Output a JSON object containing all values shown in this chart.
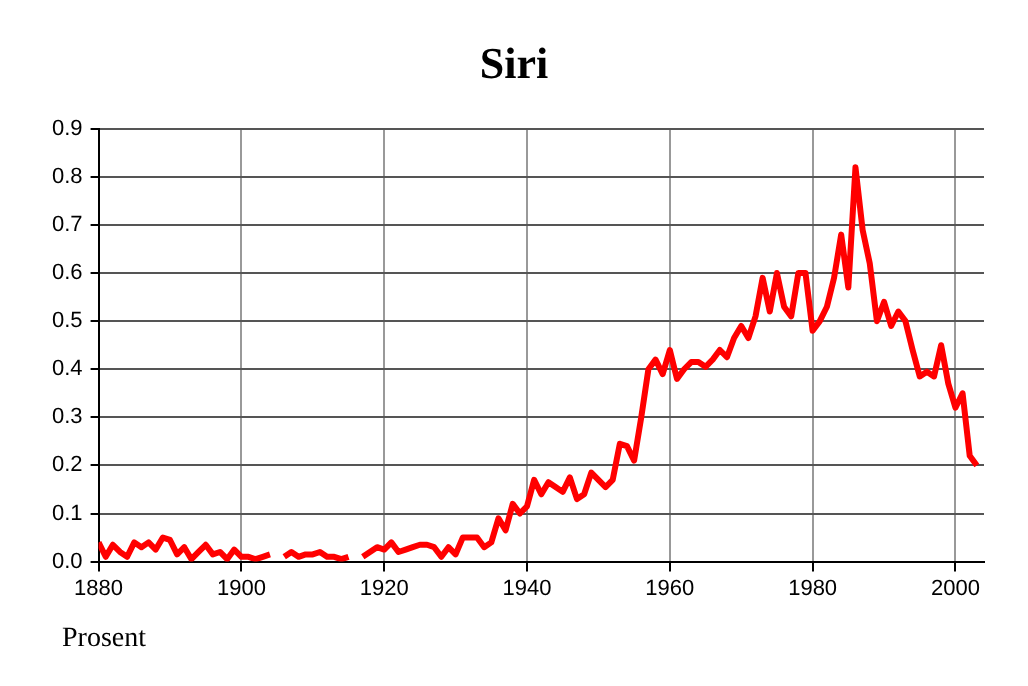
{
  "chart_data": {
    "type": "line",
    "title": "Siri",
    "ylabel": "Prosent",
    "x": [
      1880,
      1881,
      1882,
      1883,
      1884,
      1885,
      1886,
      1887,
      1888,
      1889,
      1890,
      1891,
      1892,
      1893,
      1894,
      1895,
      1896,
      1897,
      1898,
      1899,
      1900,
      1901,
      1902,
      1903,
      1904,
      1905,
      1906,
      1907,
      1908,
      1909,
      1910,
      1911,
      1912,
      1913,
      1914,
      1915,
      1916,
      1917,
      1918,
      1919,
      1920,
      1921,
      1922,
      1923,
      1924,
      1925,
      1926,
      1927,
      1928,
      1929,
      1930,
      1931,
      1932,
      1933,
      1934,
      1935,
      1936,
      1937,
      1938,
      1939,
      1940,
      1941,
      1942,
      1943,
      1944,
      1945,
      1946,
      1947,
      1948,
      1949,
      1950,
      1951,
      1952,
      1953,
      1954,
      1955,
      1956,
      1957,
      1958,
      1959,
      1960,
      1961,
      1962,
      1963,
      1964,
      1965,
      1966,
      1967,
      1968,
      1969,
      1970,
      1971,
      1972,
      1973,
      1974,
      1975,
      1976,
      1977,
      1978,
      1979,
      1980,
      1981,
      1982,
      1983,
      1984,
      1985,
      1986,
      1987,
      1988,
      1989,
      1990,
      1991,
      1992,
      1993,
      1994,
      1995,
      1996,
      1997,
      1998,
      1999,
      2000,
      2001,
      2002,
      2003
    ],
    "series": [
      {
        "color": "#ff0000",
        "values": [
          0.04,
          0.01,
          0.035,
          0.02,
          0.01,
          0.04,
          0.03,
          0.04,
          0.025,
          0.05,
          0.045,
          0.015,
          0.03,
          0.005,
          0.02,
          0.035,
          0.015,
          0.02,
          0.005,
          0.025,
          0.01,
          0.01,
          0.005,
          0.01,
          0.015,
          null,
          0.01,
          0.02,
          0.01,
          0.015,
          0.015,
          0.02,
          0.01,
          0.01,
          0.005,
          0.01,
          null,
          0.01,
          0.02,
          0.03,
          0.025,
          0.04,
          0.02,
          0.025,
          0.03,
          0.035,
          0.035,
          0.03,
          0.01,
          0.03,
          0.015,
          0.05,
          0.05,
          0.05,
          0.03,
          0.04,
          0.09,
          0.065,
          0.12,
          0.1,
          0.115,
          0.17,
          0.14,
          0.165,
          0.155,
          0.145,
          0.175,
          0.13,
          0.14,
          0.185,
          0.17,
          0.155,
          0.17,
          0.245,
          0.24,
          0.21,
          0.3,
          0.4,
          0.42,
          0.39,
          0.44,
          0.38,
          0.4,
          0.415,
          0.415,
          0.405,
          0.42,
          0.44,
          0.425,
          0.465,
          0.49,
          0.465,
          0.51,
          0.59,
          0.52,
          0.6,
          0.53,
          0.51,
          0.6,
          0.6,
          0.48,
          0.5,
          0.53,
          0.59,
          0.68,
          0.57,
          0.82,
          0.69,
          0.62,
          0.5,
          0.54,
          0.49,
          0.52,
          0.5,
          0.44,
          0.385,
          0.395,
          0.385,
          0.45,
          0.37,
          0.32,
          0.35,
          0.22,
          0.2
        ]
      }
    ],
    "xlim": [
      1880,
      2004
    ],
    "xticks": [
      1880,
      1900,
      1920,
      1940,
      1960,
      1980,
      2000
    ],
    "ylim": [
      0,
      0.9
    ],
    "yticks": [
      {
        "value": 0,
        "label": "0.0"
      },
      {
        "value": 0.1,
        "label": "0.1"
      },
      {
        "value": 0.2,
        "label": "0.2"
      },
      {
        "value": 0.3,
        "label": "0.3"
      },
      {
        "value": 0.4,
        "label": "0.4"
      },
      {
        "value": 0.5,
        "label": "0.5"
      },
      {
        "value": 0.6,
        "label": "0.6"
      },
      {
        "value": 0.7,
        "label": "0.7"
      },
      {
        "value": 0.8,
        "label": "0.8"
      },
      {
        "value": 0.9,
        "label": "0.9"
      }
    ],
    "grid": true,
    "legend": false,
    "marker": "none",
    "line_style": "solid"
  }
}
